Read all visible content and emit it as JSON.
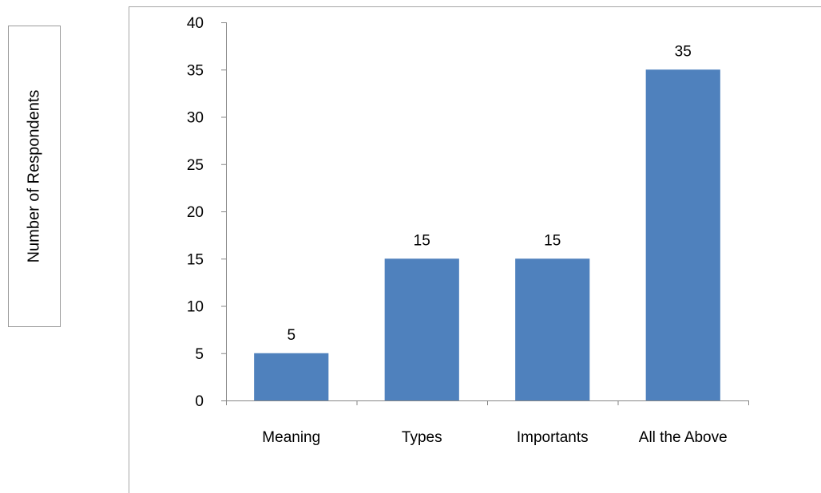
{
  "chart_data": {
    "type": "bar",
    "categories": [
      "Meaning",
      "Types",
      "Importants",
      "All the Above"
    ],
    "values": [
      5,
      15,
      15,
      35
    ],
    "data_labels": [
      "5",
      "15",
      "15",
      "35"
    ],
    "title": "",
    "xlabel": "",
    "ylabel": "Number of Respondents",
    "ylim": [
      0,
      40
    ],
    "yticks": [
      0,
      5,
      10,
      15,
      20,
      25,
      30,
      35,
      40
    ],
    "grid": false,
    "legend": "none",
    "bar_color": "#4F81BD",
    "axis_color": "#868686"
  }
}
